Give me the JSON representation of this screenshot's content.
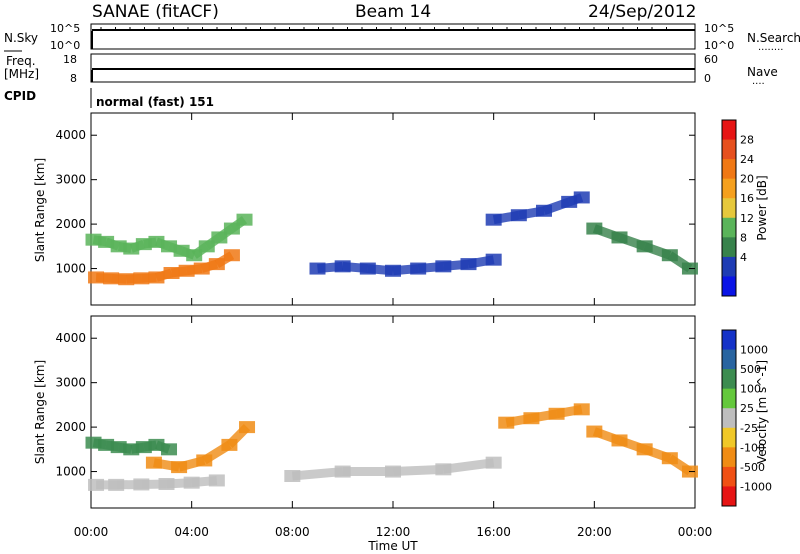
{
  "header": {
    "station": "SANAE (fitACF)",
    "beam": "Beam 14",
    "date": "24/Sep/2012"
  },
  "strip_labels": {
    "nsky": "N.Sky",
    "freq_line1": "Freq.",
    "freq_line2": "[MHz]",
    "cpid": "CPID",
    "nsearch": "N.Search",
    "nsearch_dots": "........",
    "nave": "Nave",
    "nave_dots": "....",
    "cpid_value": "normal (fast) 151"
  },
  "strip_ticks": {
    "nsky_top": "10^5",
    "nsky_bottom": "10^0",
    "nsearch_top": "10^5",
    "nsearch_bottom": "10^0",
    "freq_top": "18",
    "freq_bottom": "8",
    "nave_top": "60",
    "nave_bottom": "0"
  },
  "axes": {
    "ylabel": "Slant Range [km]",
    "y_ticks": [
      "1000",
      "2000",
      "3000",
      "4000"
    ],
    "x_ticks": [
      "00:00",
      "04:00",
      "08:00",
      "12:00",
      "16:00",
      "20:00",
      "00:00"
    ],
    "xlabel": "Time UT"
  },
  "colorbars": {
    "power": {
      "label": "Power [dB]",
      "ticks": [
        "4",
        "8",
        "12",
        "16",
        "20",
        "24",
        "28"
      ],
      "colors": [
        "#0a14e6",
        "#1e3cb4",
        "#37824b",
        "#5ab45a",
        "#e6c83c",
        "#f5a01e",
        "#f07814",
        "#e6501e",
        "#e61414"
      ]
    },
    "velocity": {
      "label": "Velocity [m s^-1]",
      "ticks": [
        "1000",
        "500",
        "100",
        "25",
        "-25",
        "-100",
        "-500",
        "-1000"
      ],
      "colors": [
        "#1432c8",
        "#2864a0",
        "#3c8c50",
        "#64c83c",
        "#bebebe",
        "#f0c828",
        "#f08c14",
        "#f05014",
        "#e61414"
      ]
    }
  },
  "chart_data": [
    {
      "type": "heatmap",
      "name": "power",
      "title": "SANAE (fitACF) Beam 14 24/Sep/2012",
      "xlabel": "Time UT",
      "ylabel": "Slant Range [km]",
      "x_range_hours": [
        0,
        24
      ],
      "ylim": [
        180,
        4500
      ],
      "colorbar": {
        "label": "Power [dB]",
        "range": [
          0,
          32
        ]
      },
      "scatter": [
        {
          "x_hours": [
            0.1,
            0.6,
            1.1,
            1.6,
            2.1,
            2.6,
            3.1,
            3.6,
            4.1,
            4.6,
            5.1,
            5.6,
            6.1
          ],
          "range_km": [
            1650,
            1600,
            1500,
            1450,
            1550,
            1600,
            1500,
            1400,
            1300,
            1500,
            1700,
            1900,
            2100
          ],
          "value": 12
        },
        {
          "x_hours": [
            0.2,
            0.8,
            1.4,
            2.0,
            2.6,
            3.2,
            3.8,
            4.4,
            5.0,
            5.6
          ],
          "range_km": [
            800,
            780,
            760,
            780,
            800,
            900,
            950,
            1000,
            1100,
            1300
          ],
          "value": 22
        },
        {
          "x_hours": [
            9,
            10,
            11,
            12,
            13,
            14,
            15,
            16
          ],
          "range_km": [
            1000,
            1050,
            1000,
            950,
            1000,
            1050,
            1100,
            1200
          ],
          "value": 5
        },
        {
          "x_hours": [
            16,
            17,
            18,
            19,
            19.5
          ],
          "range_km": [
            2100,
            2200,
            2300,
            2500,
            2600
          ],
          "value": 6
        },
        {
          "x_hours": [
            20,
            21,
            22,
            23,
            23.8
          ],
          "range_km": [
            1900,
            1700,
            1500,
            1300,
            1000
          ],
          "value": 10
        }
      ]
    },
    {
      "type": "heatmap",
      "name": "velocity",
      "xlabel": "Time UT",
      "ylabel": "Slant Range [km]",
      "x_range_hours": [
        0,
        24
      ],
      "ylim": [
        180,
        4500
      ],
      "colorbar": {
        "label": "Velocity [m s^-1]",
        "ticks": [
          1000,
          500,
          100,
          25,
          -25,
          -100,
          -500,
          -1000
        ]
      },
      "scatter": [
        {
          "x_hours": [
            0.1,
            0.6,
            1.1,
            1.6,
            2.1,
            2.6,
            3.1
          ],
          "range_km": [
            1650,
            1600,
            1550,
            1500,
            1550,
            1600,
            1500
          ],
          "value": 150
        },
        {
          "x_hours": [
            2.5,
            3.5,
            4.5,
            5.5,
            6.2
          ],
          "range_km": [
            1200,
            1100,
            1250,
            1600,
            2000
          ],
          "value": -150
        },
        {
          "x_hours": [
            0.2,
            1.0,
            2.0,
            3.0,
            4.0,
            5.0
          ],
          "range_km": [
            700,
            700,
            710,
            720,
            750,
            800
          ],
          "value": 0
        },
        {
          "x_hours": [
            8,
            10,
            12,
            14,
            16
          ],
          "range_km": [
            900,
            1000,
            1000,
            1050,
            1200
          ],
          "value": 0
        },
        {
          "x_hours": [
            16.5,
            17.5,
            18.5,
            19.5
          ],
          "range_km": [
            2100,
            2200,
            2300,
            2400
          ],
          "value": -120
        },
        {
          "x_hours": [
            20,
            21,
            22,
            23,
            23.8
          ],
          "range_km": [
            1900,
            1700,
            1500,
            1300,
            1000
          ],
          "value": -200
        }
      ]
    }
  ]
}
